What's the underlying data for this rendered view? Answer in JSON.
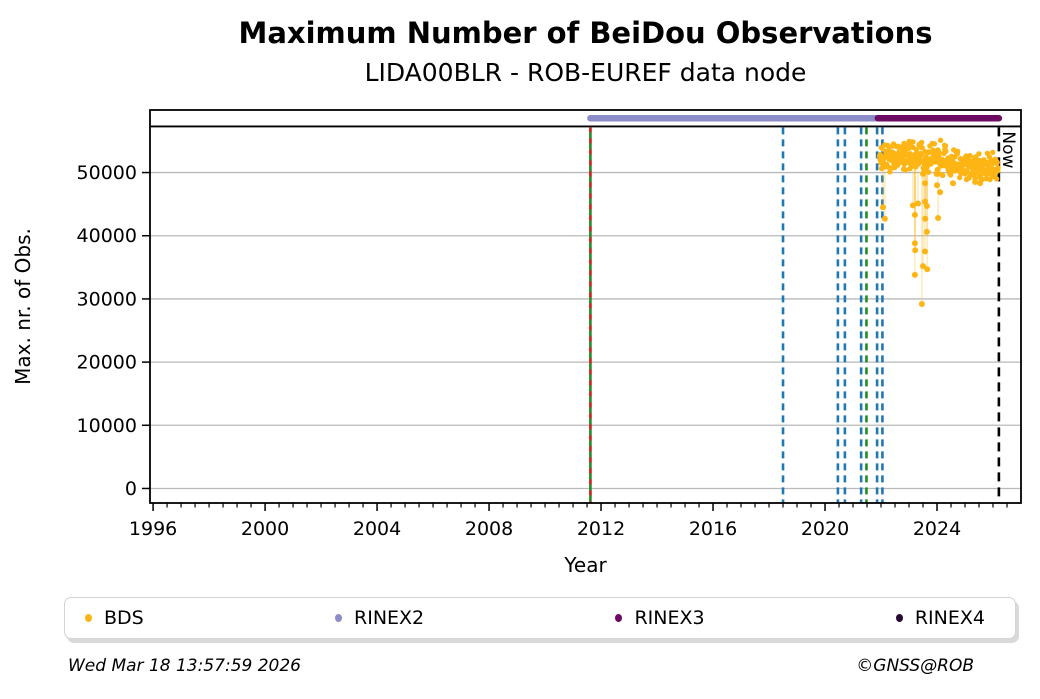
{
  "header": {
    "title": "Maximum Number of BeiDou Observations",
    "subtitle": "LIDA00BLR - ROB-EUREF data node"
  },
  "footer": {
    "timestamp": "Wed Mar 18 13:57:59 2026",
    "credit": "©GNSS@ROB"
  },
  "chart_data": {
    "type": "scatter",
    "title": "Maximum Number of BeiDou Observations",
    "subtitle": "LIDA00BLR - ROB-EUREF data node",
    "xlabel": "Year",
    "ylabel": "Max. nr. of Obs.",
    "xlim": [
      1995.89,
      2027.0
    ],
    "ylim": [
      -2300,
      59900
    ],
    "x_major_ticks": [
      1996,
      2000,
      2004,
      2008,
      2012,
      2016,
      2020,
      2024
    ],
    "x_minor_step_years": 0.5,
    "y_major_ticks": [
      0,
      10000,
      20000,
      30000,
      40000,
      50000
    ],
    "grid": "horizontal-only",
    "grid_color": "#b9b9b9",
    "legend_position": "bottom",
    "colors": {
      "blue": "#1F77B4",
      "green": "#228B22",
      "red": "#D62728",
      "black": "#000000",
      "bds_orange": "#FDB515",
      "rinex2": "#8C8CC8",
      "rinex3": "#6E0B63",
      "rinex4": "#290A33"
    },
    "reference_hline": {
      "value": 57300,
      "color_key": "black"
    },
    "availability_bars": [
      {
        "name": "RINEX2",
        "start": 2011.62,
        "end": 2021.89,
        "value": 58600,
        "color_key": "rinex2"
      },
      {
        "name": "RINEX3",
        "start": 2021.89,
        "end": 2026.21,
        "value": 58600,
        "color_key": "rinex3"
      }
    ],
    "event_lines": [
      {
        "x": 2011.62,
        "style": "solid",
        "color_key": "green",
        "name": "station-event-green-solid"
      },
      {
        "x": 2011.62,
        "style": "dashed",
        "color_key": "red",
        "name": "station-event-red-dashed"
      },
      {
        "x": 2018.5,
        "style": "dashed",
        "color_key": "blue",
        "name": "station-event-blue-dashed"
      },
      {
        "x": 2020.46,
        "style": "dashed",
        "color_key": "blue",
        "name": "station-event-blue-dashed"
      },
      {
        "x": 2020.71,
        "style": "dashed",
        "color_key": "blue",
        "name": "station-event-blue-dashed"
      },
      {
        "x": 2021.29,
        "style": "dashed",
        "color_key": "blue",
        "name": "station-event-blue-dashed"
      },
      {
        "x": 2021.48,
        "style": "dashed",
        "color_key": "green",
        "name": "station-event-green-dashed"
      },
      {
        "x": 2021.86,
        "style": "dashed",
        "color_key": "blue",
        "name": "station-event-blue-dashed"
      },
      {
        "x": 2022.05,
        "style": "dashed",
        "color_key": "blue",
        "name": "station-event-blue-dashed"
      },
      {
        "x": 2026.21,
        "style": "dashed",
        "color_key": "black",
        "name": "now-line",
        "label": "Now"
      }
    ],
    "now_label": "Now",
    "series": [
      {
        "name": "BDS",
        "color_key": "bds_orange",
        "dense_band_segments": [
          {
            "start": 2021.95,
            "end": 2022.6,
            "n": 60,
            "mean": 52600,
            "spread": 2200
          },
          {
            "start": 2022.6,
            "end": 2023.45,
            "n": 80,
            "mean": 52900,
            "spread": 2300
          },
          {
            "start": 2023.45,
            "end": 2024.3,
            "n": 80,
            "mean": 52100,
            "spread": 2600
          },
          {
            "start": 2024.3,
            "end": 2025.25,
            "n": 75,
            "mean": 51200,
            "spread": 2300
          },
          {
            "start": 2025.25,
            "end": 2026.18,
            "n": 80,
            "mean": 50900,
            "spread": 2000
          }
        ],
        "band_clamp": [
          48900,
          55300
        ],
        "outliers": [
          [
            2022.07,
            44500
          ],
          [
            2022.14,
            42700
          ],
          [
            2023.14,
            44800
          ],
          [
            2023.21,
            43300
          ],
          [
            2023.21,
            38800
          ],
          [
            2023.22,
            37700
          ],
          [
            2023.21,
            33800
          ],
          [
            2023.32,
            45100
          ],
          [
            2023.46,
            29200
          ],
          [
            2023.5,
            35200
          ],
          [
            2023.57,
            48300
          ],
          [
            2023.57,
            45400
          ],
          [
            2023.58,
            42700
          ],
          [
            2023.57,
            37500
          ],
          [
            2023.64,
            44700
          ],
          [
            2023.64,
            40600
          ],
          [
            2023.65,
            34700
          ],
          [
            2024.0,
            48000
          ],
          [
            2024.04,
            42800
          ],
          [
            2024.11,
            46900
          ],
          [
            2024.57,
            48300
          ],
          [
            2025.36,
            48500
          ],
          [
            2025.54,
            48300
          ]
        ]
      }
    ],
    "legend": [
      {
        "label": "BDS",
        "color_key": "bds_orange"
      },
      {
        "label": "RINEX2",
        "color_key": "rinex2"
      },
      {
        "label": "RINEX3",
        "color_key": "rinex3"
      },
      {
        "label": "RINEX4",
        "color_key": "rinex4"
      }
    ]
  }
}
